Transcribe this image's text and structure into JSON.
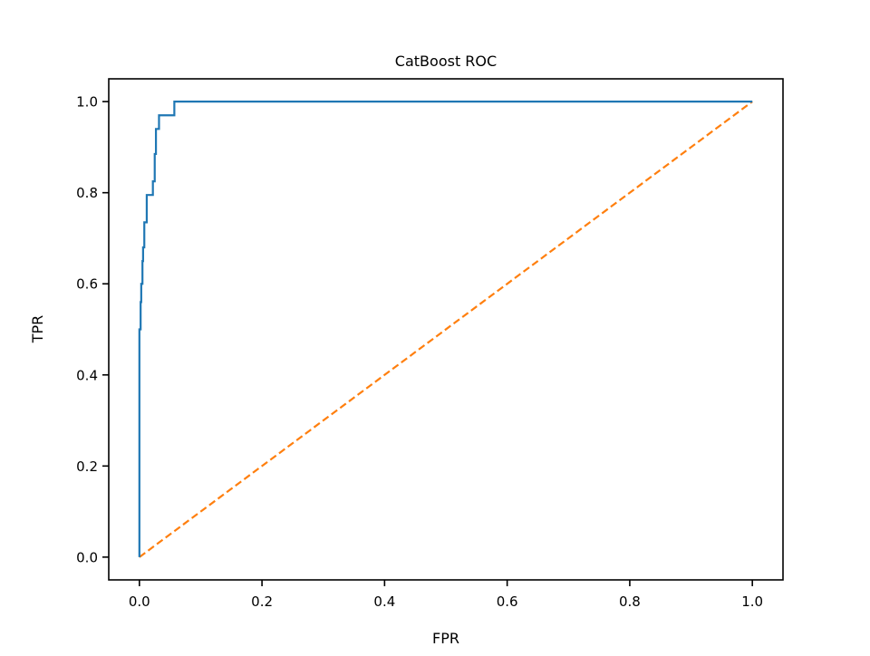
{
  "chart_data": {
    "type": "line",
    "title": "CatBoost ROC",
    "xlabel": "FPR",
    "ylabel": "TPR",
    "xlim": [
      -0.05,
      1.05
    ],
    "ylim": [
      -0.05,
      1.05
    ],
    "xticks": [
      0.0,
      0.2,
      0.4,
      0.6,
      0.8,
      1.0
    ],
    "xtick_labels": [
      "0.0",
      "0.2",
      "0.4",
      "0.6",
      "0.8",
      "1.0"
    ],
    "yticks": [
      0.0,
      0.2,
      0.4,
      0.6,
      0.8,
      1.0
    ],
    "ytick_labels": [
      "0.0",
      "0.2",
      "0.4",
      "0.6",
      "0.8",
      "1.0"
    ],
    "grid": false,
    "legend": "none",
    "series": [
      {
        "color": "#1f77b4",
        "style": "solid",
        "step": true,
        "x": [
          0.0,
          0.0,
          0.0,
          0.0,
          0.002,
          0.002,
          0.003,
          0.003,
          0.005,
          0.005,
          0.006,
          0.006,
          0.008,
          0.008,
          0.012,
          0.012,
          0.022,
          0.022,
          0.025,
          0.025,
          0.027,
          0.027,
          0.032,
          0.032,
          0.038,
          0.038,
          0.057,
          0.057,
          1.0
        ],
        "y": [
          0.0,
          0.26,
          0.41,
          0.5,
          0.5,
          0.56,
          0.56,
          0.6,
          0.6,
          0.65,
          0.65,
          0.68,
          0.68,
          0.735,
          0.735,
          0.795,
          0.795,
          0.825,
          0.825,
          0.885,
          0.885,
          0.94,
          0.94,
          0.97,
          0.97,
          0.97,
          0.97,
          1.0,
          1.0
        ]
      },
      {
        "color": "#ff7f0e",
        "style": "dashed",
        "x": [
          0.0,
          1.0
        ],
        "y": [
          0.0,
          1.0
        ]
      }
    ]
  }
}
